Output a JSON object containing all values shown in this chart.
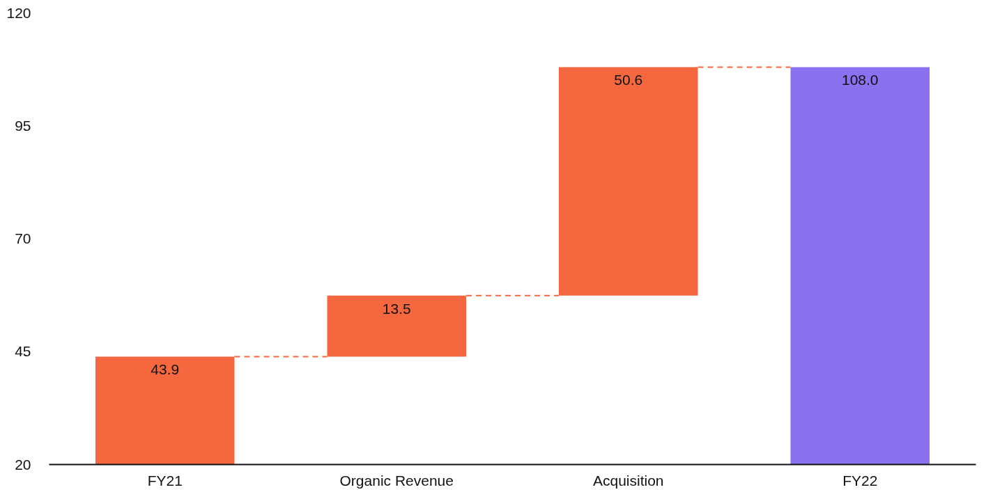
{
  "chart_data": {
    "type": "bar",
    "categories": [
      "FY21",
      "Organic Revenue",
      "Acquisition",
      "FY22"
    ],
    "base": [
      20,
      43.9,
      57.4,
      20
    ],
    "values": [
      23.9,
      13.5,
      50.6,
      88
    ],
    "value_labels": [
      "43.9",
      "13.5",
      "50.6",
      "108.0"
    ],
    "colors": [
      "#f4673f",
      "#f4673f",
      "#f4673f",
      "#8b70f0"
    ],
    "ref_lines": [
      {
        "axis": "y",
        "value": 43.9,
        "label": null,
        "color": "#f4673f",
        "line_style": "dashed"
      },
      {
        "axis": "y",
        "value": 57.4,
        "label": null,
        "color": "#f4673f",
        "line_style": "dashed"
      },
      {
        "axis": "y",
        "value": 108,
        "label": null,
        "color": "#f4673f",
        "line_style": "dashed"
      }
    ],
    "ylim": [
      20,
      120
    ],
    "yticks": [
      20,
      45,
      70,
      95,
      120
    ],
    "grid": false
  }
}
